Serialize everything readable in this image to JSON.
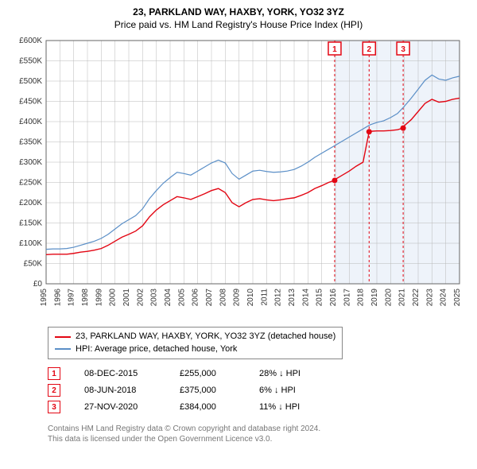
{
  "title": "23, PARKLAND WAY, HAXBY, YORK, YO32 3YZ",
  "subtitle": "Price paid vs. HM Land Registry's House Price Index (HPI)",
  "chart": {
    "type": "line",
    "background_color": "#ffffff",
    "grid_color": "#b8b8b8",
    "axis_color": "#666666",
    "ylim": [
      0,
      600
    ],
    "ytick_step": 50,
    "ytick_prefix": "£",
    "ytick_suffix": "K",
    "xlim": [
      1995,
      2025
    ],
    "xtick_step": 1,
    "series": [
      {
        "name": "property",
        "label": "23, PARKLAND WAY, HAXBY, YORK, YO32 3YZ (detached house)",
        "color": "#e30613",
        "width": 1.4,
        "points": [
          [
            1995,
            72
          ],
          [
            1995.5,
            73
          ],
          [
            1996,
            73
          ],
          [
            1996.5,
            73
          ],
          [
            1997,
            75
          ],
          [
            1997.5,
            78
          ],
          [
            1998,
            80
          ],
          [
            1998.5,
            83
          ],
          [
            1999,
            87
          ],
          [
            1999.5,
            95
          ],
          [
            2000,
            105
          ],
          [
            2000.5,
            115
          ],
          [
            2001,
            122
          ],
          [
            2001.5,
            130
          ],
          [
            2002,
            143
          ],
          [
            2002.5,
            165
          ],
          [
            2003,
            182
          ],
          [
            2003.5,
            195
          ],
          [
            2004,
            205
          ],
          [
            2004.5,
            215
          ],
          [
            2005,
            212
          ],
          [
            2005.5,
            208
          ],
          [
            2006,
            215
          ],
          [
            2006.5,
            222
          ],
          [
            2007,
            230
          ],
          [
            2007.5,
            235
          ],
          [
            2008,
            225
          ],
          [
            2008.5,
            200
          ],
          [
            2009,
            190
          ],
          [
            2009.5,
            200
          ],
          [
            2010,
            208
          ],
          [
            2010.5,
            210
          ],
          [
            2011,
            207
          ],
          [
            2011.5,
            205
          ],
          [
            2012,
            207
          ],
          [
            2012.5,
            210
          ],
          [
            2013,
            212
          ],
          [
            2013.5,
            218
          ],
          [
            2014,
            225
          ],
          [
            2014.5,
            235
          ],
          [
            2015,
            242
          ],
          [
            2015.5,
            250
          ],
          [
            2015.94,
            255
          ],
          [
            2016,
            258
          ],
          [
            2016.5,
            268
          ],
          [
            2017,
            278
          ],
          [
            2017.5,
            290
          ],
          [
            2018,
            300
          ],
          [
            2018.44,
            375
          ],
          [
            2018.5,
            376
          ],
          [
            2019,
            377
          ],
          [
            2019.5,
            377
          ],
          [
            2020,
            378
          ],
          [
            2020.5,
            380
          ],
          [
            2020.91,
            384
          ],
          [
            2021,
            390
          ],
          [
            2021.5,
            405
          ],
          [
            2022,
            425
          ],
          [
            2022.5,
            445
          ],
          [
            2023,
            455
          ],
          [
            2023.5,
            448
          ],
          [
            2024,
            450
          ],
          [
            2024.5,
            455
          ],
          [
            2025,
            458
          ]
        ]
      },
      {
        "name": "hpi",
        "label": "HPI: Average price, detached house, York",
        "color": "#5b8fc7",
        "width": 1.2,
        "points": [
          [
            1995,
            85
          ],
          [
            1995.5,
            86
          ],
          [
            1996,
            86
          ],
          [
            1996.5,
            87
          ],
          [
            1997,
            90
          ],
          [
            1997.5,
            95
          ],
          [
            1998,
            100
          ],
          [
            1998.5,
            105
          ],
          [
            1999,
            112
          ],
          [
            1999.5,
            122
          ],
          [
            2000,
            135
          ],
          [
            2000.5,
            148
          ],
          [
            2001,
            158
          ],
          [
            2001.5,
            168
          ],
          [
            2002,
            185
          ],
          [
            2002.5,
            210
          ],
          [
            2003,
            230
          ],
          [
            2003.5,
            248
          ],
          [
            2004,
            262
          ],
          [
            2004.5,
            275
          ],
          [
            2005,
            272
          ],
          [
            2005.5,
            268
          ],
          [
            2006,
            278
          ],
          [
            2006.5,
            288
          ],
          [
            2007,
            298
          ],
          [
            2007.5,
            305
          ],
          [
            2008,
            298
          ],
          [
            2008.5,
            272
          ],
          [
            2009,
            258
          ],
          [
            2009.5,
            268
          ],
          [
            2010,
            278
          ],
          [
            2010.5,
            280
          ],
          [
            2011,
            277
          ],
          [
            2011.5,
            275
          ],
          [
            2012,
            276
          ],
          [
            2012.5,
            278
          ],
          [
            2013,
            282
          ],
          [
            2013.5,
            290
          ],
          [
            2014,
            300
          ],
          [
            2014.5,
            312
          ],
          [
            2015,
            322
          ],
          [
            2015.5,
            332
          ],
          [
            2016,
            342
          ],
          [
            2016.5,
            352
          ],
          [
            2017,
            362
          ],
          [
            2017.5,
            372
          ],
          [
            2018,
            382
          ],
          [
            2018.5,
            392
          ],
          [
            2019,
            398
          ],
          [
            2019.5,
            402
          ],
          [
            2020,
            410
          ],
          [
            2020.5,
            420
          ],
          [
            2021,
            438
          ],
          [
            2021.5,
            458
          ],
          [
            2022,
            480
          ],
          [
            2022.5,
            502
          ],
          [
            2023,
            515
          ],
          [
            2023.5,
            505
          ],
          [
            2024,
            502
          ],
          [
            2024.5,
            508
          ],
          [
            2025,
            512
          ]
        ]
      }
    ],
    "sale_markers": [
      {
        "n": "1",
        "x": 2015.94,
        "y": 255
      },
      {
        "n": "2",
        "x": 2018.44,
        "y": 375
      },
      {
        "n": "3",
        "x": 2020.91,
        "y": 384
      }
    ],
    "shade_from_x": 2015.94,
    "shade_color": "#eef3fa"
  },
  "legend": [
    {
      "color": "#e30613",
      "label": "23, PARKLAND WAY, HAXBY, YORK, YO32 3YZ (detached house)"
    },
    {
      "color": "#5b8fc7",
      "label": "HPI: Average price, detached house, York"
    }
  ],
  "sales": [
    {
      "n": "1",
      "date": "08-DEC-2015",
      "price": "£255,000",
      "diff": "28% ↓ HPI"
    },
    {
      "n": "2",
      "date": "08-JUN-2018",
      "price": "£375,000",
      "diff": "6% ↓ HPI"
    },
    {
      "n": "3",
      "date": "27-NOV-2020",
      "price": "£384,000",
      "diff": "11% ↓ HPI"
    }
  ],
  "footer": [
    "Contains HM Land Registry data © Crown copyright and database right 2024.",
    "This data is licensed under the Open Government Licence v3.0."
  ]
}
